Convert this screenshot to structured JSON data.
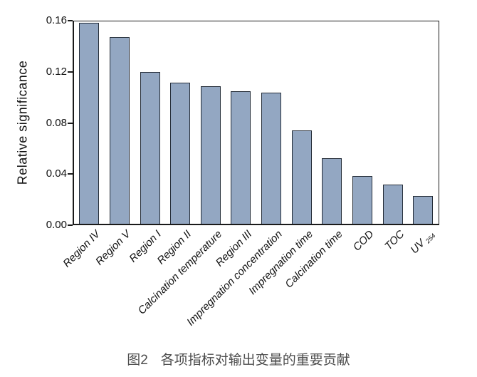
{
  "chart_data": {
    "type": "bar",
    "title": "",
    "ylabel": "Relative significance",
    "xlabel": "",
    "categories": [
      "Region IV",
      "Region V",
      "Region I",
      "Region II",
      "Calcination temperature",
      "Region III",
      "Impregnation concentration",
      "Impregnation time",
      "Calcination time",
      "COD",
      "TOC",
      "UV_254"
    ],
    "values": [
      0.159,
      0.148,
      0.12,
      0.112,
      0.109,
      0.105,
      0.104,
      0.074,
      0.052,
      0.038,
      0.031,
      0.022
    ],
    "ylim": [
      0,
      0.16
    ],
    "yticks": [
      0.0,
      0.04,
      0.08,
      0.12,
      0.16
    ],
    "ytick_labels": [
      "0.00",
      "0.04",
      "0.08",
      "0.12",
      "0.16"
    ],
    "grid": false,
    "legend_position": "none",
    "colors": {
      "bar_fill": "#93a7c2",
      "bar_edge": "#252d38",
      "axis": "#1a1a1a",
      "caption_text": "#4d4d4d"
    }
  },
  "caption": {
    "figure_label": "图2",
    "text": "各项指标对输出变量的重要贡献"
  }
}
